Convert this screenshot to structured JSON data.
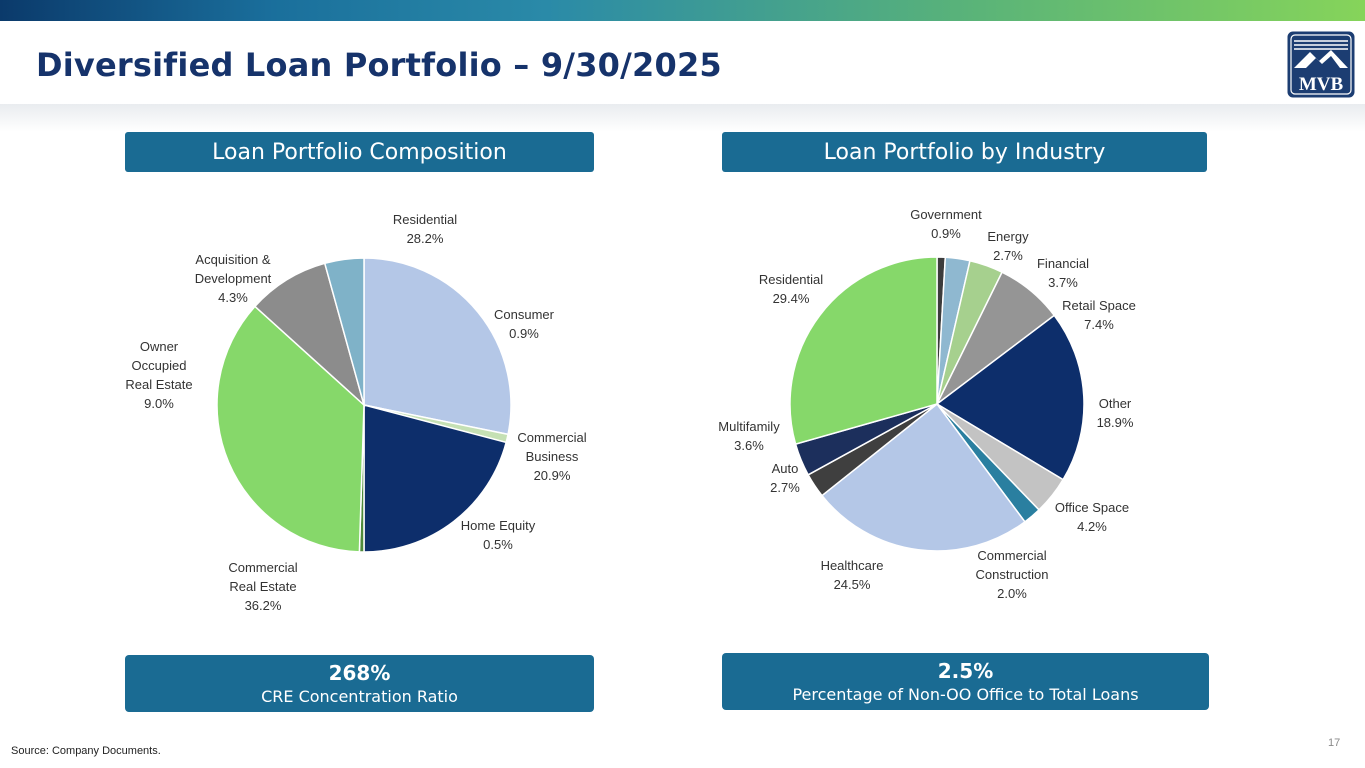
{
  "header": {
    "title": "Diversified Loan Portfolio – 9/30/2025",
    "logo_text": "MVB"
  },
  "left_panel": {
    "heading": "Loan Portfolio Composition",
    "stat_value": "268%",
    "stat_label": "CRE Concentration Ratio"
  },
  "right_panel": {
    "heading": "Loan Portfolio by Industry",
    "stat_value": "2.5%",
    "stat_label": "Percentage of Non-OO Office to Total Loans"
  },
  "footer": {
    "source": "Source: Company Documents.",
    "page_number": "17"
  },
  "chart_data": [
    {
      "type": "pie",
      "title": "Loan Portfolio Composition",
      "slices": [
        {
          "name": "Residential",
          "label_lines": [
            "Residential",
            "28.2%"
          ],
          "value": 28.2,
          "color": "#b4c7e7"
        },
        {
          "name": "Consumer",
          "label_lines": [
            "Consumer",
            "0.9%"
          ],
          "value": 0.9,
          "color": "#c5e0b4"
        },
        {
          "name": "Commercial Business",
          "label_lines": [
            "Commercial",
            "Business",
            "20.9%"
          ],
          "value": 20.9,
          "color": "#0d2e6b"
        },
        {
          "name": "Home Equity",
          "label_lines": [
            "Home Equity",
            "0.5%"
          ],
          "value": 0.5,
          "color": "#4f8a3a"
        },
        {
          "name": "Commercial Real Estate",
          "label_lines": [
            "Commercial",
            "Real Estate",
            "36.2%"
          ],
          "value": 36.2,
          "color": "#86d86a"
        },
        {
          "name": "Owner Occupied Real Estate",
          "label_lines": [
            "Owner",
            "Occupied",
            "Real Estate",
            "9.0%"
          ],
          "value": 9.0,
          "color": "#8c8c8c"
        },
        {
          "name": "Acquisition & Development",
          "label_lines": [
            "Acquisition &",
            "Development",
            "4.3%"
          ],
          "value": 4.3,
          "color": "#7fb2c8"
        }
      ]
    },
    {
      "type": "pie",
      "title": "Loan Portfolio by Industry",
      "slices": [
        {
          "name": "Government",
          "label_lines": [
            "Government",
            "0.9%"
          ],
          "value": 0.9,
          "color": "#3c3c3c"
        },
        {
          "name": "Energy",
          "label_lines": [
            "Energy",
            "2.7%"
          ],
          "value": 2.7,
          "color": "#8fb8d0"
        },
        {
          "name": "Financial",
          "label_lines": [
            "Financial",
            "3.7%"
          ],
          "value": 3.7,
          "color": "#a6d08e"
        },
        {
          "name": "Retail Space",
          "label_lines": [
            "Retail Space",
            "7.4%"
          ],
          "value": 7.4,
          "color": "#959595"
        },
        {
          "name": "Other",
          "label_lines": [
            "Other",
            "18.9%"
          ],
          "value": 18.9,
          "color": "#0d2e6b"
        },
        {
          "name": "Office Space",
          "label_lines": [
            "Office Space",
            "4.2%"
          ],
          "value": 4.2,
          "color": "#c3c3c3"
        },
        {
          "name": "Commercial Construction",
          "label_lines": [
            "Commercial",
            "Construction",
            "2.0%"
          ],
          "value": 2.0,
          "color": "#2a7fa0"
        },
        {
          "name": "Healthcare",
          "label_lines": [
            "Healthcare",
            "24.5%"
          ],
          "value": 24.5,
          "color": "#b4c7e7"
        },
        {
          "name": "Auto",
          "label_lines": [
            "Auto",
            "2.7%"
          ],
          "value": 2.7,
          "color": "#3f3f3f"
        },
        {
          "name": "Multifamily",
          "label_lines": [
            "Multifamily",
            "3.6%"
          ],
          "value": 3.6,
          "color": "#1c2f5c"
        },
        {
          "name": "Residential",
          "label_lines": [
            "Residential",
            "29.4%"
          ],
          "value": 29.4,
          "color": "#86d86a"
        }
      ]
    }
  ]
}
